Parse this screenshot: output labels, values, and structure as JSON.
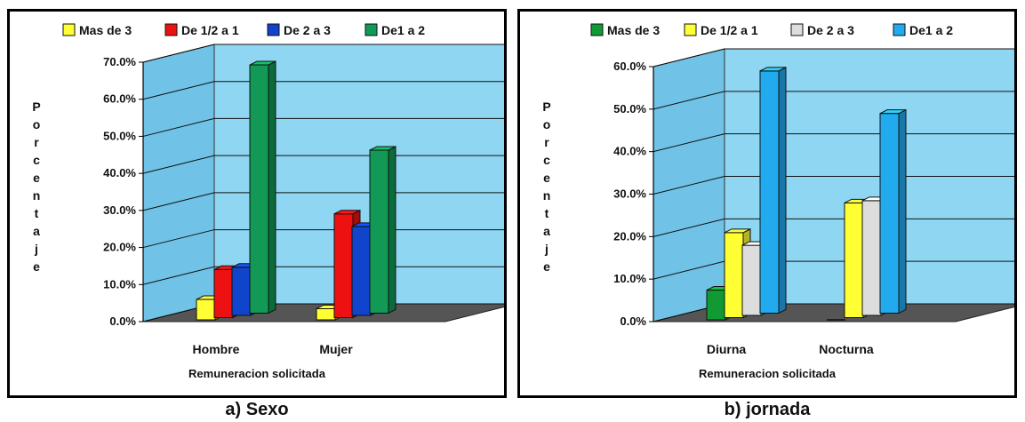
{
  "captions": {
    "a": "a) Sexo",
    "b": "b) jornada"
  },
  "chart_data": [
    {
      "type": "bar",
      "title": "",
      "xlabel": "Remuneracion solicitada",
      "ylabel": "Porcentaje",
      "ylim": [
        0,
        70
      ],
      "yticks": [
        "0.0%",
        "10.0%",
        "20.0%",
        "30.0%",
        "40.0%",
        "50.0%",
        "60.0%",
        "70.0%"
      ],
      "categories": [
        "Hombre",
        "Mujer"
      ],
      "legend_position": "top",
      "series": [
        {
          "name": "Mas de 3",
          "color": "#ffff33",
          "values": [
            5.5,
            3
          ]
        },
        {
          "name": "De 1/2 a 1",
          "color": "#ee1111",
          "values": [
            13,
            28
          ]
        },
        {
          "name": "De 2 a 3",
          "color": "#1144cc",
          "values": [
            13,
            24
          ]
        },
        {
          "name": "De1 a 2",
          "color": "#119955",
          "values": [
            67,
            44
          ]
        }
      ],
      "grid": true
    },
    {
      "type": "bar",
      "title": "",
      "xlabel": "Remuneracion solicitada",
      "ylabel": "Porcentaje",
      "ylim": [
        0,
        60
      ],
      "yticks": [
        "0.0%",
        "10.0%",
        "20.0%",
        "30.0%",
        "40.0%",
        "50.0%",
        "60.0%"
      ],
      "categories": [
        "Diurna",
        "Nocturna"
      ],
      "legend_position": "top",
      "series": [
        {
          "name": "Mas de 3",
          "color": "#119933",
          "values": [
            7,
            0
          ]
        },
        {
          "name": "De 1/2 a 1",
          "color": "#ffff33",
          "values": [
            20,
            27
          ]
        },
        {
          "name": "De 2 a 3",
          "color": "#dddddd",
          "values": [
            16.5,
            27
          ]
        },
        {
          "name": "De1 a 2",
          "color": "#22aaee",
          "values": [
            57,
            47
          ]
        }
      ],
      "grid": true
    }
  ]
}
